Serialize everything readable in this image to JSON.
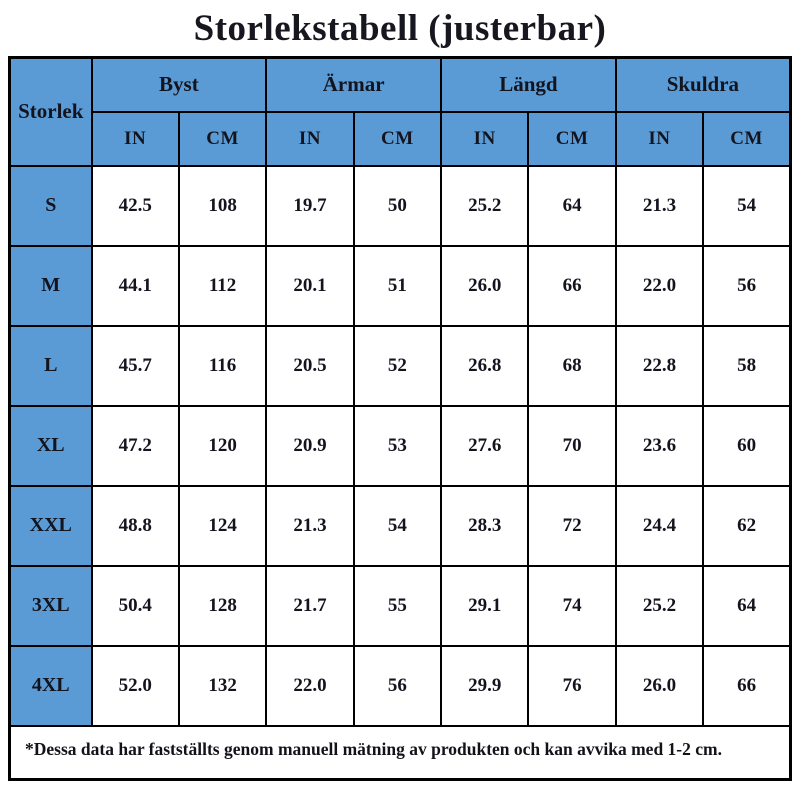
{
  "title": "Storlekstabell (justerbar)",
  "table": {
    "corner_label": "Storlek",
    "groups": [
      {
        "label": "Byst"
      },
      {
        "label": "Ärmar"
      },
      {
        "label": "Längd"
      },
      {
        "label": "Skuldra"
      }
    ],
    "unit_headers": [
      "IN",
      "CM",
      "IN",
      "CM",
      "IN",
      "CM",
      "IN",
      "CM"
    ],
    "rows": [
      {
        "size": "S",
        "values": [
          "42.5",
          "108",
          "19.7",
          "50",
          "25.2",
          "64",
          "21.3",
          "54"
        ]
      },
      {
        "size": "M",
        "values": [
          "44.1",
          "112",
          "20.1",
          "51",
          "26.0",
          "66",
          "22.0",
          "56"
        ]
      },
      {
        "size": "L",
        "values": [
          "45.7",
          "116",
          "20.5",
          "52",
          "26.8",
          "68",
          "22.8",
          "58"
        ]
      },
      {
        "size": "XL",
        "values": [
          "47.2",
          "120",
          "20.9",
          "53",
          "27.6",
          "70",
          "23.6",
          "60"
        ]
      },
      {
        "size": "XXL",
        "values": [
          "48.8",
          "124",
          "21.3",
          "54",
          "28.3",
          "72",
          "24.4",
          "62"
        ]
      },
      {
        "size": "3XL",
        "values": [
          "50.4",
          "128",
          "21.7",
          "55",
          "29.1",
          "74",
          "25.2",
          "64"
        ]
      },
      {
        "size": "4XL",
        "values": [
          "52.0",
          "132",
          "22.0",
          "56",
          "29.9",
          "76",
          "26.0",
          "66"
        ]
      }
    ],
    "footnote": "*Dessa data har fastställts genom manuell mätning av produkten och kan avvika med 1-2 cm.",
    "colors": {
      "header_bg": "#5B9BD5",
      "border": "#000000",
      "cell_bg": "#FFFFFF",
      "text": "#14141E"
    }
  }
}
